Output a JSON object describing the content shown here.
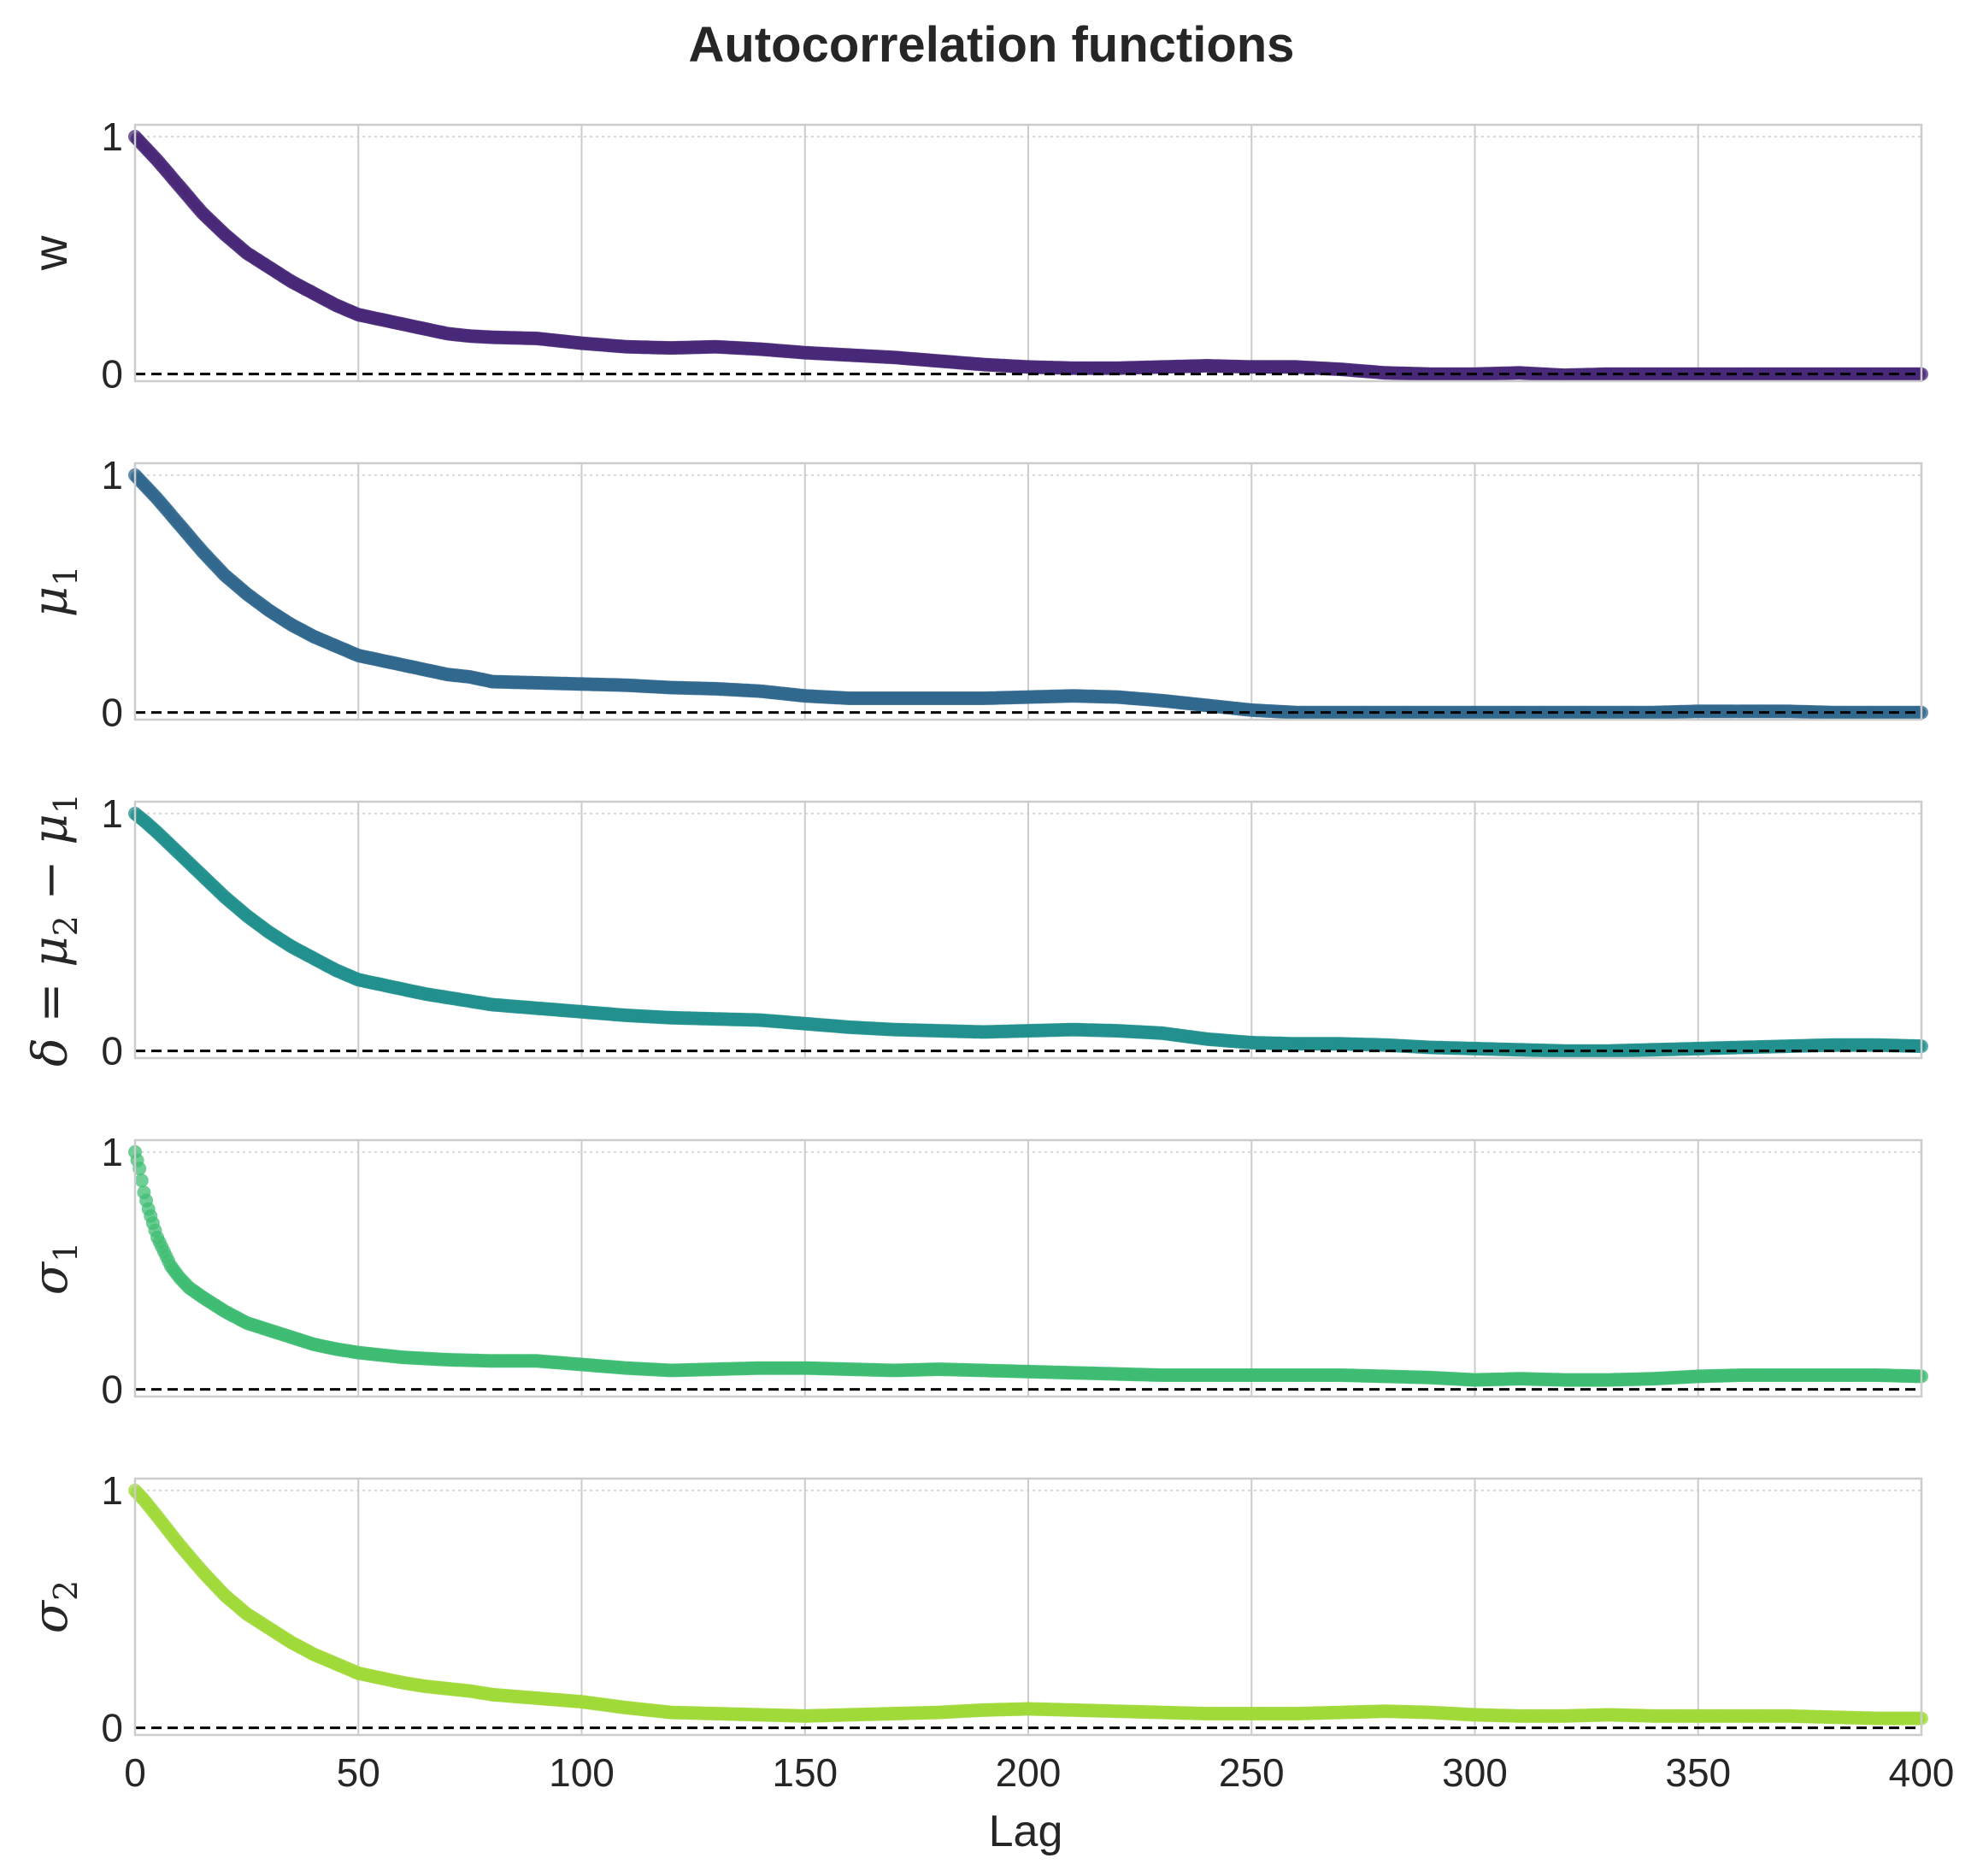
{
  "chart_data": {
    "type": "scatter",
    "title": "Autocorrelation functions",
    "xlabel": "Lag",
    "xlim": [
      0,
      400
    ],
    "xticks": [
      0,
      50,
      100,
      150,
      200,
      250,
      300,
      350,
      400
    ],
    "ylim": [
      -0.03,
      1.05
    ],
    "yticks": [
      0,
      1
    ],
    "grid": true,
    "reference_line_y": 0,
    "panels": [
      {
        "ylabel": "w",
        "color": "#482878",
        "points": [
          [
            0,
            1.0
          ],
          [
            2,
            0.96
          ],
          [
            5,
            0.9
          ],
          [
            10,
            0.79
          ],
          [
            15,
            0.68
          ],
          [
            20,
            0.59
          ],
          [
            25,
            0.51
          ],
          [
            30,
            0.45
          ],
          [
            35,
            0.39
          ],
          [
            40,
            0.34
          ],
          [
            45,
            0.29
          ],
          [
            50,
            0.25
          ],
          [
            55,
            0.23
          ],
          [
            60,
            0.21
          ],
          [
            65,
            0.19
          ],
          [
            70,
            0.17
          ],
          [
            75,
            0.16
          ],
          [
            80,
            0.155
          ],
          [
            90,
            0.15
          ],
          [
            100,
            0.13
          ],
          [
            110,
            0.115
          ],
          [
            120,
            0.11
          ],
          [
            130,
            0.115
          ],
          [
            140,
            0.105
          ],
          [
            150,
            0.09
          ],
          [
            160,
            0.08
          ],
          [
            170,
            0.07
          ],
          [
            180,
            0.055
          ],
          [
            190,
            0.04
          ],
          [
            200,
            0.03
          ],
          [
            210,
            0.025
          ],
          [
            220,
            0.025
          ],
          [
            230,
            0.03
          ],
          [
            240,
            0.035
          ],
          [
            250,
            0.03
          ],
          [
            260,
            0.03
          ],
          [
            270,
            0.02
          ],
          [
            280,
            0.005
          ],
          [
            290,
            0.0
          ],
          [
            300,
            0.0
          ],
          [
            310,
            0.005
          ],
          [
            320,
            -0.005
          ],
          [
            330,
            0.0
          ],
          [
            340,
            0.0
          ],
          [
            350,
            0.0
          ],
          [
            360,
            0.0
          ],
          [
            370,
            0.0
          ],
          [
            380,
            0.0
          ],
          [
            390,
            0.0
          ],
          [
            400,
            0.0
          ]
        ]
      },
      {
        "ylabel": "μ1",
        "color": "#31688e",
        "points": [
          [
            0,
            1.0
          ],
          [
            2,
            0.96
          ],
          [
            5,
            0.9
          ],
          [
            10,
            0.79
          ],
          [
            15,
            0.68
          ],
          [
            20,
            0.58
          ],
          [
            25,
            0.5
          ],
          [
            30,
            0.43
          ],
          [
            35,
            0.37
          ],
          [
            40,
            0.32
          ],
          [
            45,
            0.28
          ],
          [
            50,
            0.24
          ],
          [
            55,
            0.22
          ],
          [
            60,
            0.2
          ],
          [
            65,
            0.18
          ],
          [
            70,
            0.16
          ],
          [
            75,
            0.15
          ],
          [
            80,
            0.13
          ],
          [
            90,
            0.125
          ],
          [
            100,
            0.12
          ],
          [
            110,
            0.115
          ],
          [
            120,
            0.105
          ],
          [
            130,
            0.1
          ],
          [
            140,
            0.09
          ],
          [
            150,
            0.07
          ],
          [
            160,
            0.06
          ],
          [
            170,
            0.06
          ],
          [
            180,
            0.06
          ],
          [
            190,
            0.06
          ],
          [
            200,
            0.065
          ],
          [
            210,
            0.07
          ],
          [
            220,
            0.065
          ],
          [
            230,
            0.05
          ],
          [
            240,
            0.03
          ],
          [
            250,
            0.01
          ],
          [
            260,
            0.0
          ],
          [
            270,
            0.0
          ],
          [
            280,
            0.0
          ],
          [
            290,
            0.0
          ],
          [
            300,
            0.0
          ],
          [
            310,
            0.0
          ],
          [
            320,
            0.0
          ],
          [
            330,
            0.0
          ],
          [
            340,
            0.0
          ],
          [
            350,
            0.005
          ],
          [
            360,
            0.005
          ],
          [
            370,
            0.005
          ],
          [
            380,
            0.0
          ],
          [
            390,
            0.0
          ],
          [
            400,
            0.0
          ]
        ]
      },
      {
        "ylabel": "δ = μ2 − μ1",
        "color": "#21908d",
        "points": [
          [
            0,
            1.0
          ],
          [
            2,
            0.97
          ],
          [
            5,
            0.92
          ],
          [
            10,
            0.83
          ],
          [
            15,
            0.74
          ],
          [
            20,
            0.65
          ],
          [
            25,
            0.57
          ],
          [
            30,
            0.5
          ],
          [
            35,
            0.44
          ],
          [
            40,
            0.39
          ],
          [
            45,
            0.34
          ],
          [
            50,
            0.3
          ],
          [
            55,
            0.28
          ],
          [
            60,
            0.26
          ],
          [
            65,
            0.24
          ],
          [
            70,
            0.225
          ],
          [
            75,
            0.21
          ],
          [
            80,
            0.195
          ],
          [
            90,
            0.18
          ],
          [
            100,
            0.165
          ],
          [
            110,
            0.15
          ],
          [
            120,
            0.14
          ],
          [
            130,
            0.135
          ],
          [
            140,
            0.13
          ],
          [
            150,
            0.115
          ],
          [
            160,
            0.1
          ],
          [
            170,
            0.09
          ],
          [
            180,
            0.085
          ],
          [
            190,
            0.08
          ],
          [
            200,
            0.085
          ],
          [
            210,
            0.09
          ],
          [
            220,
            0.085
          ],
          [
            230,
            0.075
          ],
          [
            240,
            0.05
          ],
          [
            250,
            0.035
          ],
          [
            260,
            0.03
          ],
          [
            270,
            0.03
          ],
          [
            280,
            0.025
          ],
          [
            290,
            0.015
          ],
          [
            300,
            0.01
          ],
          [
            310,
            0.005
          ],
          [
            320,
            0.0
          ],
          [
            330,
            0.0
          ],
          [
            340,
            0.005
          ],
          [
            350,
            0.01
          ],
          [
            360,
            0.015
          ],
          [
            370,
            0.02
          ],
          [
            380,
            0.025
          ],
          [
            390,
            0.025
          ],
          [
            400,
            0.02
          ]
        ]
      },
      {
        "ylabel": "σ1",
        "color": "#3fbc73",
        "points": [
          [
            0,
            1.0
          ],
          [
            1,
            0.93
          ],
          [
            2,
            0.83
          ],
          [
            3,
            0.76
          ],
          [
            4,
            0.7
          ],
          [
            5,
            0.64
          ],
          [
            6,
            0.6
          ],
          [
            7,
            0.56
          ],
          [
            8,
            0.52
          ],
          [
            10,
            0.47
          ],
          [
            12,
            0.43
          ],
          [
            15,
            0.39
          ],
          [
            20,
            0.33
          ],
          [
            25,
            0.28
          ],
          [
            30,
            0.25
          ],
          [
            35,
            0.22
          ],
          [
            40,
            0.19
          ],
          [
            45,
            0.17
          ],
          [
            50,
            0.155
          ],
          [
            55,
            0.145
          ],
          [
            60,
            0.135
          ],
          [
            70,
            0.125
          ],
          [
            80,
            0.12
          ],
          [
            90,
            0.12
          ],
          [
            100,
            0.105
          ],
          [
            110,
            0.09
          ],
          [
            120,
            0.08
          ],
          [
            130,
            0.085
          ],
          [
            140,
            0.09
          ],
          [
            150,
            0.09
          ],
          [
            160,
            0.085
          ],
          [
            170,
            0.08
          ],
          [
            180,
            0.085
          ],
          [
            190,
            0.08
          ],
          [
            200,
            0.075
          ],
          [
            210,
            0.07
          ],
          [
            220,
            0.065
          ],
          [
            230,
            0.06
          ],
          [
            240,
            0.06
          ],
          [
            250,
            0.06
          ],
          [
            260,
            0.06
          ],
          [
            270,
            0.06
          ],
          [
            280,
            0.055
          ],
          [
            290,
            0.05
          ],
          [
            300,
            0.04
          ],
          [
            310,
            0.045
          ],
          [
            320,
            0.04
          ],
          [
            330,
            0.04
          ],
          [
            340,
            0.045
          ],
          [
            350,
            0.055
          ],
          [
            360,
            0.06
          ],
          [
            370,
            0.06
          ],
          [
            380,
            0.06
          ],
          [
            390,
            0.06
          ],
          [
            400,
            0.055
          ]
        ]
      },
      {
        "ylabel": "σ2",
        "color": "#a0da39",
        "points": [
          [
            0,
            1.0
          ],
          [
            2,
            0.96
          ],
          [
            5,
            0.89
          ],
          [
            10,
            0.77
          ],
          [
            15,
            0.66
          ],
          [
            20,
            0.56
          ],
          [
            25,
            0.48
          ],
          [
            30,
            0.42
          ],
          [
            35,
            0.36
          ],
          [
            40,
            0.31
          ],
          [
            45,
            0.27
          ],
          [
            50,
            0.23
          ],
          [
            55,
            0.21
          ],
          [
            60,
            0.19
          ],
          [
            65,
            0.175
          ],
          [
            70,
            0.165
          ],
          [
            75,
            0.155
          ],
          [
            80,
            0.14
          ],
          [
            90,
            0.125
          ],
          [
            100,
            0.11
          ],
          [
            110,
            0.085
          ],
          [
            120,
            0.065
          ],
          [
            130,
            0.06
          ],
          [
            140,
            0.055
          ],
          [
            150,
            0.05
          ],
          [
            160,
            0.055
          ],
          [
            170,
            0.06
          ],
          [
            180,
            0.065
          ],
          [
            190,
            0.075
          ],
          [
            200,
            0.08
          ],
          [
            210,
            0.075
          ],
          [
            220,
            0.07
          ],
          [
            230,
            0.065
          ],
          [
            240,
            0.06
          ],
          [
            250,
            0.06
          ],
          [
            260,
            0.06
          ],
          [
            270,
            0.065
          ],
          [
            280,
            0.07
          ],
          [
            290,
            0.065
          ],
          [
            300,
            0.055
          ],
          [
            310,
            0.05
          ],
          [
            320,
            0.05
          ],
          [
            330,
            0.055
          ],
          [
            340,
            0.05
          ],
          [
            350,
            0.05
          ],
          [
            360,
            0.05
          ],
          [
            370,
            0.05
          ],
          [
            380,
            0.045
          ],
          [
            390,
            0.04
          ],
          [
            400,
            0.04
          ]
        ]
      }
    ]
  }
}
